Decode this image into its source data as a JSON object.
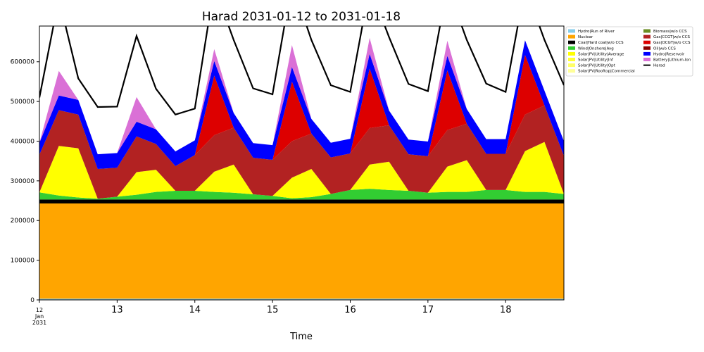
{
  "chart_data": {
    "type": "area",
    "title": "Harad 2031-01-12 to 2031-01-18",
    "xlabel": "Time",
    "ylabel": "",
    "x_start": "2031-01-12 00:00",
    "x_step_hours": 6,
    "xlim": [
      0,
      27
    ],
    "x_ticks": [
      {
        "x": 0,
        "label": "12",
        "sub": [
          "Jan",
          "2031"
        ]
      },
      {
        "x": 4,
        "label": "13"
      },
      {
        "x": 8,
        "label": "14"
      },
      {
        "x": 12,
        "label": "15"
      },
      {
        "x": 16,
        "label": "16"
      },
      {
        "x": 20,
        "label": "17"
      },
      {
        "x": 24,
        "label": "18"
      }
    ],
    "ylim": [
      0,
      690000
    ],
    "y_ticks": [
      0,
      100000,
      200000,
      300000,
      400000,
      500000,
      600000
    ],
    "grid": false,
    "legend_position": "right",
    "series": [
      {
        "name": "Hydro|Run of River",
        "color": "#87ceeb",
        "values": [
          3000,
          3000,
          3000,
          3000,
          3000,
          3000,
          3000,
          3000,
          3000,
          3000,
          3000,
          3000,
          3000,
          3000,
          3000,
          3000,
          3000,
          3000,
          3000,
          3000,
          3000,
          3000,
          3000,
          3000,
          3000,
          3000,
          3000,
          3000
        ]
      },
      {
        "name": "Nuclear",
        "color": "#ffa500",
        "values": [
          240000,
          240000,
          240000,
          240000,
          240000,
          240000,
          240000,
          240000,
          240000,
          240000,
          240000,
          240000,
          240000,
          240000,
          240000,
          240000,
          240000,
          240000,
          240000,
          240000,
          240000,
          240000,
          240000,
          240000,
          240000,
          240000,
          240000,
          240000
        ]
      },
      {
        "name": "Coal|Hard coal|w/o CCS",
        "color": "#000000",
        "values": [
          10000,
          10000,
          10000,
          10000,
          10000,
          10000,
          10000,
          10000,
          10000,
          10000,
          10000,
          10000,
          10000,
          10000,
          10000,
          10000,
          10000,
          10000,
          10000,
          10000,
          10000,
          10000,
          10000,
          10000,
          10000,
          10000,
          10000,
          10000
        ]
      },
      {
        "name": "Wind|Onshore|Avg",
        "color": "#32cd32",
        "values": [
          18000,
          10000,
          5000,
          2000,
          7000,
          12000,
          19000,
          22000,
          22000,
          19000,
          17000,
          13000,
          9000,
          3000,
          6000,
          14000,
          24000,
          27000,
          24000,
          22000,
          17000,
          19000,
          19000,
          24000,
          24000,
          19000,
          19000,
          14000
        ]
      },
      {
        "name": "Biomass|w/o CCS",
        "color": "#6b8e23",
        "values": [
          0,
          0,
          0,
          0,
          0,
          0,
          0,
          0,
          0,
          0,
          0,
          0,
          0,
          0,
          0,
          0,
          0,
          0,
          0,
          0,
          0,
          0,
          0,
          0,
          0,
          0,
          0,
          0
        ]
      },
      {
        "name": "Solar|PV|Utility|Average",
        "color": "#ffff00",
        "values": [
          0,
          125000,
          124000,
          0,
          0,
          57000,
          56000,
          0,
          0,
          51000,
          71000,
          0,
          0,
          52000,
          71000,
          0,
          0,
          61000,
          71000,
          0,
          0,
          64000,
          80000,
          0,
          0,
          103000,
          126000,
          0
        ]
      },
      {
        "name": "Gas|CCGT|w/o CCS",
        "color": "#b22222",
        "values": [
          95000,
          90000,
          85000,
          75000,
          73000,
          90000,
          65000,
          62000,
          90000,
          92000,
          93000,
          92000,
          91000,
          92000,
          89000,
          92000,
          92000,
          92000,
          92000,
          92000,
          92000,
          92000,
          92000,
          91000,
          91000,
          92000,
          92000,
          96000
        ]
      },
      {
        "name": "Gas|OCGT|w/o CCS",
        "color": "#dd0000",
        "values": [
          0,
          0,
          0,
          0,
          0,
          0,
          0,
          0,
          0,
          150000,
          0,
          0,
          0,
          150000,
          0,
          0,
          0,
          150000,
          0,
          0,
          0,
          150000,
          0,
          0,
          0,
          150000,
          0,
          0
        ]
      },
      {
        "name": "Hydro|Reservoir",
        "color": "#0000ff",
        "values": [
          30000,
          37000,
          37000,
          37000,
          37000,
          37000,
          37000,
          37000,
          37000,
          37000,
          37000,
          37000,
          37000,
          37000,
          37000,
          37000,
          37000,
          37000,
          37000,
          37000,
          37000,
          37000,
          37000,
          37000,
          37000,
          37000,
          37000,
          37000
        ]
      },
      {
        "name": "Battery|Lithium-Ion",
        "color": "#da70d6",
        "values": [
          0,
          62000,
          0,
          0,
          0,
          62000,
          0,
          0,
          0,
          30000,
          0,
          0,
          0,
          55000,
          0,
          0,
          0,
          40000,
          0,
          0,
          0,
          38000,
          0,
          0,
          0,
          0,
          0,
          0
        ]
      },
      {
        "name": "Solar|PV|Utility|Inf",
        "color": "#ffff33",
        "values": [
          0,
          0,
          0,
          0,
          0,
          0,
          0,
          0,
          0,
          0,
          0,
          0,
          0,
          0,
          0,
          0,
          0,
          0,
          0,
          0,
          0,
          0,
          0,
          0,
          0,
          0,
          0,
          0
        ]
      },
      {
        "name": "Solar|PV|Utility|Opt",
        "color": "#ffff66",
        "values": [
          0,
          0,
          0,
          0,
          0,
          0,
          0,
          0,
          0,
          0,
          0,
          0,
          0,
          0,
          0,
          0,
          0,
          0,
          0,
          0,
          0,
          0,
          0,
          0,
          0,
          0,
          0,
          0
        ]
      },
      {
        "name": "Solar|PV|Rooftop|Commercial",
        "color": "#ffff99",
        "values": [
          0,
          0,
          0,
          0,
          0,
          0,
          0,
          0,
          0,
          0,
          0,
          0,
          0,
          0,
          0,
          0,
          0,
          0,
          0,
          0,
          0,
          0,
          0,
          0,
          0,
          0,
          0,
          0
        ]
      },
      {
        "name": "Oil|w/o CCS",
        "color": "#8b0000",
        "values": [
          0,
          0,
          0,
          0,
          0,
          0,
          0,
          0,
          0,
          0,
          0,
          0,
          0,
          0,
          0,
          0,
          0,
          0,
          0,
          0,
          0,
          0,
          0,
          0,
          0,
          0,
          0,
          0
        ]
      }
    ],
    "demand": {
      "name": "Harad",
      "color": "#000000",
      "values": [
        510000,
        760000,
        558000,
        486000,
        487000,
        665000,
        532000,
        467000,
        482000,
        790000,
        655000,
        533000,
        518000,
        800000,
        655000,
        541000,
        524000,
        790000,
        662000,
        544000,
        526000,
        790000,
        655000,
        545000,
        524000,
        790000,
        655000,
        541000
      ]
    },
    "legend": [
      "Hydro|Run of River",
      "Nuclear",
      "Coal|Hard coal|w/o CCS",
      "Wind|Onshore|Avg",
      "Solar|PV|Utility|Average",
      "Solar|PV|Utility|Inf",
      "Solar|PV|Utility|Opt",
      "Solar|PV|Rooftop|Commercial",
      "Biomass|w/o CCS",
      "Gas|CCGT|w/o CCS",
      "Gas|OCGT|w/o CCS",
      "Oil|w/o CCS",
      "Hydro|Reservoir",
      "Battery|Lithium-Ion",
      "Harad"
    ]
  }
}
